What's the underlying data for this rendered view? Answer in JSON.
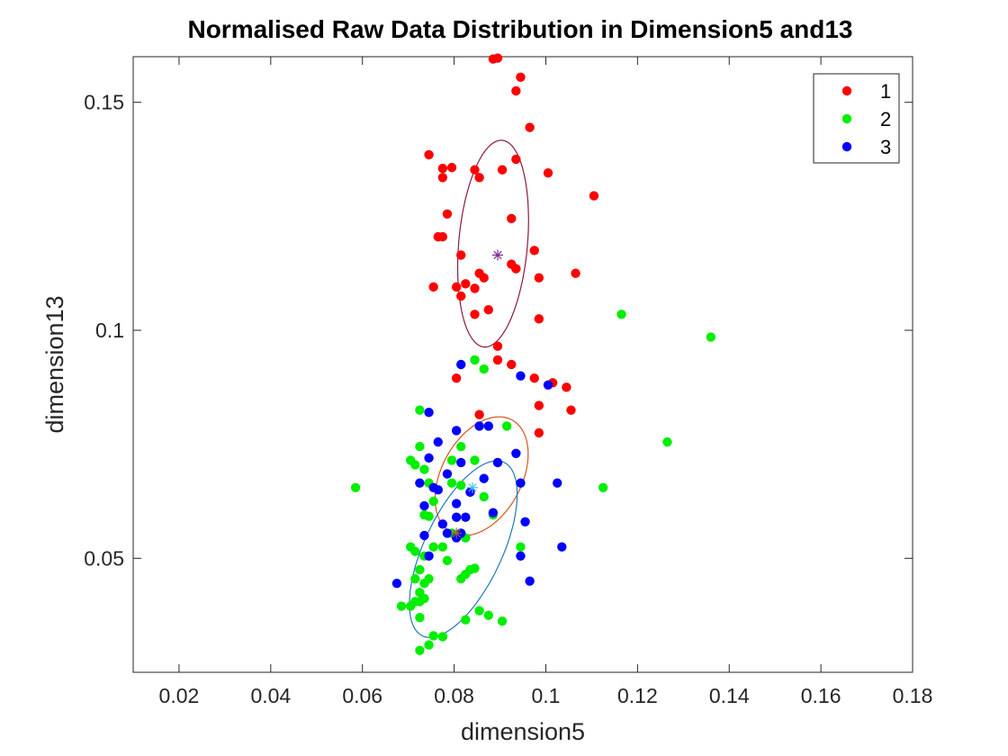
{
  "chart_data": {
    "type": "scatter",
    "title": "Normalised Raw Data Distribution in Dimension5 and13",
    "xlabel": "dimension5",
    "ylabel": "dimension13",
    "xlim": [
      0.01,
      0.18
    ],
    "ylim": [
      0.025,
      0.16
    ],
    "xticks": [
      0.02,
      0.04,
      0.06,
      0.08,
      0.1,
      0.12,
      0.14,
      0.16,
      0.18
    ],
    "xtick_labels": [
      "0.02",
      "0.04",
      "0.06",
      "0.08",
      "0.1",
      "0.12",
      "0.14",
      "0.16",
      "0.18"
    ],
    "yticks": [
      0.05,
      0.1,
      0.15
    ],
    "ytick_labels": [
      "0.05",
      "0.1",
      "0.15"
    ],
    "legend_position": "top-right",
    "grid": false,
    "series": [
      {
        "name": "1",
        "color": "#ff0000",
        "points": [
          [
            0.0885,
            0.1595
          ],
          [
            0.0895,
            0.1597
          ],
          [
            0.0945,
            0.1555
          ],
          [
            0.0935,
            0.1525
          ],
          [
            0.0965,
            0.1445
          ],
          [
            0.0745,
            0.1385
          ],
          [
            0.0935,
            0.1375
          ],
          [
            0.1005,
            0.1345
          ],
          [
            0.0775,
            0.1355
          ],
          [
            0.0795,
            0.1357
          ],
          [
            0.0845,
            0.1352
          ],
          [
            0.0855,
            0.1335
          ],
          [
            0.0905,
            0.1352
          ],
          [
            0.0775,
            0.1335
          ],
          [
            0.1105,
            0.1295
          ],
          [
            0.0785,
            0.1255
          ],
          [
            0.0925,
            0.1245
          ],
          [
            0.0765,
            0.1205
          ],
          [
            0.0775,
            0.1205
          ],
          [
            0.0975,
            0.1175
          ],
          [
            0.0815,
            0.1165
          ],
          [
            0.0925,
            0.1145
          ],
          [
            0.0935,
            0.1135
          ],
          [
            0.0855,
            0.1125
          ],
          [
            0.0865,
            0.1115
          ],
          [
            0.0985,
            0.1115
          ],
          [
            0.1065,
            0.1125
          ],
          [
            0.0755,
            0.1095
          ],
          [
            0.0805,
            0.1095
          ],
          [
            0.0825,
            0.1102
          ],
          [
            0.0845,
            0.1092
          ],
          [
            0.0815,
            0.1075
          ],
          [
            0.0875,
            0.1045
          ],
          [
            0.0845,
            0.1035
          ],
          [
            0.0985,
            0.1025
          ],
          [
            0.0895,
            0.0965
          ],
          [
            0.0895,
            0.0935
          ],
          [
            0.0925,
            0.0925
          ],
          [
            0.0805,
            0.0895
          ],
          [
            0.0975,
            0.0895
          ],
          [
            0.1015,
            0.0885
          ],
          [
            0.1045,
            0.0875
          ],
          [
            0.0985,
            0.0835
          ],
          [
            0.1055,
            0.0825
          ],
          [
            0.0855,
            0.0815
          ],
          [
            0.0985,
            0.0775
          ]
        ]
      },
      {
        "name": "2",
        "color": "#00ee00",
        "points": [
          [
            0.1165,
            0.1035
          ],
          [
            0.136,
            0.0985
          ],
          [
            0.0845,
            0.0935
          ],
          [
            0.0865,
            0.0915
          ],
          [
            0.0725,
            0.0825
          ],
          [
            0.0915,
            0.079
          ],
          [
            0.1265,
            0.0755
          ],
          [
            0.0725,
            0.0745
          ],
          [
            0.0815,
            0.0745
          ],
          [
            0.0705,
            0.0715
          ],
          [
            0.0715,
            0.0705
          ],
          [
            0.0795,
            0.0715
          ],
          [
            0.0845,
            0.0715
          ],
          [
            0.0735,
            0.0695
          ],
          [
            0.0745,
            0.0665
          ],
          [
            0.0795,
            0.0665
          ],
          [
            0.0815,
            0.066
          ],
          [
            0.0585,
            0.0655
          ],
          [
            0.1125,
            0.0655
          ],
          [
            0.0865,
            0.0635
          ],
          [
            0.0755,
            0.0625
          ],
          [
            0.0735,
            0.0595
          ],
          [
            0.0745,
            0.0592
          ],
          [
            0.0885,
            0.0595
          ],
          [
            0.0795,
            0.0555
          ],
          [
            0.0705,
            0.0525
          ],
          [
            0.0715,
            0.0515
          ],
          [
            0.0735,
            0.0505
          ],
          [
            0.0755,
            0.0525
          ],
          [
            0.0775,
            0.0525
          ],
          [
            0.0825,
            0.0545
          ],
          [
            0.0945,
            0.0525
          ],
          [
            0.0725,
            0.0475
          ],
          [
            0.0785,
            0.0495
          ],
          [
            0.0835,
            0.0475
          ],
          [
            0.0845,
            0.0478
          ],
          [
            0.0815,
            0.0455
          ],
          [
            0.0825,
            0.0465
          ],
          [
            0.0715,
            0.0455
          ],
          [
            0.0735,
            0.0445
          ],
          [
            0.0745,
            0.0455
          ],
          [
            0.0725,
            0.0425
          ],
          [
            0.0735,
            0.0412
          ],
          [
            0.0715,
            0.0405
          ],
          [
            0.0705,
            0.0395
          ],
          [
            0.0685,
            0.0395
          ],
          [
            0.0725,
            0.0405
          ],
          [
            0.0855,
            0.0385
          ],
          [
            0.0875,
            0.0375
          ],
          [
            0.0725,
            0.037
          ],
          [
            0.0825,
            0.0365
          ],
          [
            0.0905,
            0.0362
          ],
          [
            0.0755,
            0.033
          ],
          [
            0.0775,
            0.0328
          ],
          [
            0.0745,
            0.031
          ],
          [
            0.0725,
            0.0298
          ]
        ]
      },
      {
        "name": "3",
        "color": "#0000ff",
        "points": [
          [
            0.0815,
            0.0925
          ],
          [
            0.0945,
            0.09
          ],
          [
            0.1005,
            0.088
          ],
          [
            0.0745,
            0.082
          ],
          [
            0.0855,
            0.079
          ],
          [
            0.0875,
            0.079
          ],
          [
            0.0805,
            0.078
          ],
          [
            0.0765,
            0.0755
          ],
          [
            0.0935,
            0.073
          ],
          [
            0.0745,
            0.072
          ],
          [
            0.0815,
            0.071
          ],
          [
            0.0895,
            0.071
          ],
          [
            0.0785,
            0.0685
          ],
          [
            0.0865,
            0.0675
          ],
          [
            0.0725,
            0.0665
          ],
          [
            0.0755,
            0.0655
          ],
          [
            0.0835,
            0.0645
          ],
          [
            0.0945,
            0.0665
          ],
          [
            0.1025,
            0.0665
          ],
          [
            0.0765,
            0.065
          ],
          [
            0.0805,
            0.062
          ],
          [
            0.0885,
            0.06
          ],
          [
            0.0735,
            0.0615
          ],
          [
            0.0805,
            0.059
          ],
          [
            0.0825,
            0.059
          ],
          [
            0.0775,
            0.0575
          ],
          [
            0.0955,
            0.058
          ],
          [
            0.0735,
            0.055
          ],
          [
            0.0805,
            0.0545
          ],
          [
            0.0815,
            0.0555
          ],
          [
            0.0785,
            0.0555
          ],
          [
            0.1035,
            0.0525
          ],
          [
            0.0745,
            0.0505
          ],
          [
            0.0945,
            0.0505
          ],
          [
            0.0965,
            0.045
          ],
          [
            0.0675,
            0.0445
          ]
        ]
      }
    ],
    "ellipses": [
      {
        "color": "#8b1a3c",
        "center": [
          0.0885,
          0.119
        ],
        "semi_major": 0.0455,
        "semi_minor": 0.015,
        "angle_deg": 85
      },
      {
        "color": "#d9541c",
        "center": [
          0.086,
          0.068
        ],
        "semi_major": 0.028,
        "semi_minor": 0.0175,
        "angle_deg": 62
      },
      {
        "color": "#1f7ab8",
        "center": [
          0.082,
          0.052
        ],
        "semi_major": 0.042,
        "semi_minor": 0.017,
        "angle_deg": 65
      }
    ],
    "centroids": [
      {
        "color": "#7e2f8e",
        "x": 0.0895,
        "y": 0.1165
      },
      {
        "color": "#4dbeee",
        "x": 0.084,
        "y": 0.0655
      },
      {
        "color": "#a0662a",
        "x": 0.0805,
        "y": 0.0555
      }
    ]
  }
}
